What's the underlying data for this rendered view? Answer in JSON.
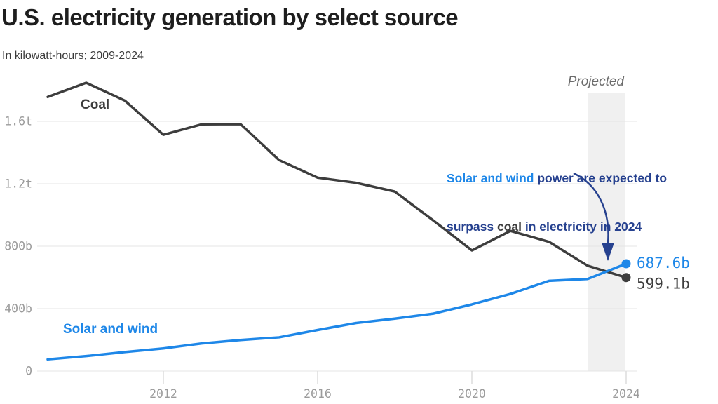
{
  "header": {
    "title": "U.S. electricity generation by select source",
    "subtitle": "In kilowatt-hours; 2009-2024"
  },
  "colors": {
    "coal": "#3d3d3d",
    "solar_wind": "#1e87e8",
    "annotation_navy": "#26418f",
    "gridline": "#e4e4e4",
    "tick": "#dcdcdc",
    "axis_text": "#9b9b9b",
    "projected_band": "#f0f0f0"
  },
  "chart_data": {
    "type": "line",
    "x": [
      2009,
      2010,
      2011,
      2012,
      2013,
      2014,
      2015,
      2016,
      2017,
      2018,
      2019,
      2020,
      2021,
      2022,
      2023,
      2024
    ],
    "series": [
      {
        "name": "Coal",
        "color": "#3d3d3d",
        "values": [
          1756,
          1847,
          1733,
          1514,
          1581,
          1582,
          1352,
          1239,
          1206,
          1150,
          965,
          773,
          898,
          828,
          675,
          599.1
        ],
        "end_label": "599.1b",
        "end_label_dy": 16
      },
      {
        "name": "Solar and wind",
        "color": "#1e87e8",
        "values": [
          75,
          96,
          122,
          145,
          177,
          199,
          216,
          263,
          308,
          336,
          368,
          427,
          494,
          578,
          590,
          687.6
        ],
        "end_label": "687.6b",
        "end_label_dy": 6
      }
    ],
    "yticks": [
      {
        "value": 0,
        "label": "0"
      },
      {
        "value": 400,
        "label": "400b"
      },
      {
        "value": 800,
        "label": "800b"
      },
      {
        "value": 1200,
        "label": "1.2t"
      },
      {
        "value": 1600,
        "label": "1.6t"
      }
    ],
    "xticks": [
      {
        "value": 2012,
        "label": "2012"
      },
      {
        "value": 2016,
        "label": "2016"
      },
      {
        "value": 2020,
        "label": "2020"
      },
      {
        "value": 2024,
        "label": "2024"
      }
    ],
    "ylim": [
      0,
      1790
    ],
    "xlim": [
      2009,
      2024
    ],
    "grid": "horizontal",
    "legend_position": "inline-labels",
    "projected_region": {
      "label": "Projected",
      "start": 2023,
      "end": 2024
    }
  },
  "annotation": {
    "part1": "Solar and wind",
    "part2": " power are expected to",
    "part3": "surpass ",
    "part4": "coal",
    "part5": " in electricity in 2024"
  }
}
